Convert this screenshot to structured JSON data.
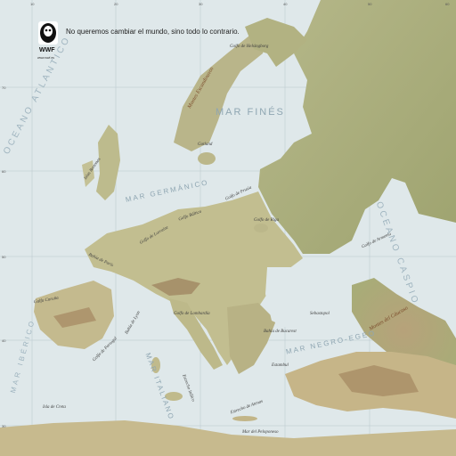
{
  "branding": {
    "logo_text": "WWF",
    "tagline": "No queremos cambiar el mundo, sino todo lo contrario.",
    "url": "www.wwf.es"
  },
  "icons": {
    "logo": "panda-logo-icon"
  },
  "colors": {
    "sea": "#dfe8ea",
    "land_low": "#c9c79a",
    "land_green": "#9aa36e",
    "mountain": "#8a6a4a",
    "grid": "#b7c6cc"
  },
  "seas": {
    "oceano_atlantico": "OCEANO ATLANTICO",
    "mar_fines": "MAR FINÉS",
    "mar_germanico": "MAR GERMÁNICO",
    "oceano_caspio": "OCEANO CASPIO",
    "mar_negro_egeo": "MAR NEGRO-EGEO",
    "mar_tirreno": "MAR ITALIANO",
    "atlantico_sur": "MAR IBÉRICO"
  },
  "places": {
    "golfo_helsingborg": "Golfo de Helsingborg",
    "golfo_riga": "Golfo de Riga",
    "gotland": "Gotland",
    "golfo_prusia": "Golfo de Prusia",
    "golfo_baltico": "Golfo Báltico",
    "islas_bretonas": "Islas Bretonas",
    "golfo_lorraine": "Golfo de Lorraine",
    "bahia_paris": "Bahía de París",
    "golfo_coruna": "Golfo Coruña",
    "bahia_lyon": "Bahía de Lyon",
    "golfo_lombardia": "Golfo de Lombardía",
    "golfo_portugal": "Golfo de Portugal",
    "sebastopol": "Sebastopol",
    "bahia_bucarest": "Bahía de Bucarest",
    "estrecho_italia": "Estrecho Itálico",
    "estambul": "Estambul",
    "estrecho_atenas": "Estrecho de Atenas",
    "isla_creta": "Isla de Creta",
    "mar_peloponeso": "Mar del Peloponeso",
    "golfo_armenia": "Golfo de Armenia"
  },
  "ranges": {
    "escandinavos": "Montes Escandinavos",
    "caucaso": "Montes del Cáucaso"
  },
  "grid_ticks": {
    "top": [
      "10",
      "20",
      "30",
      "40",
      "50",
      "60"
    ],
    "left": [
      "70",
      "60",
      "50",
      "40",
      "30"
    ]
  }
}
